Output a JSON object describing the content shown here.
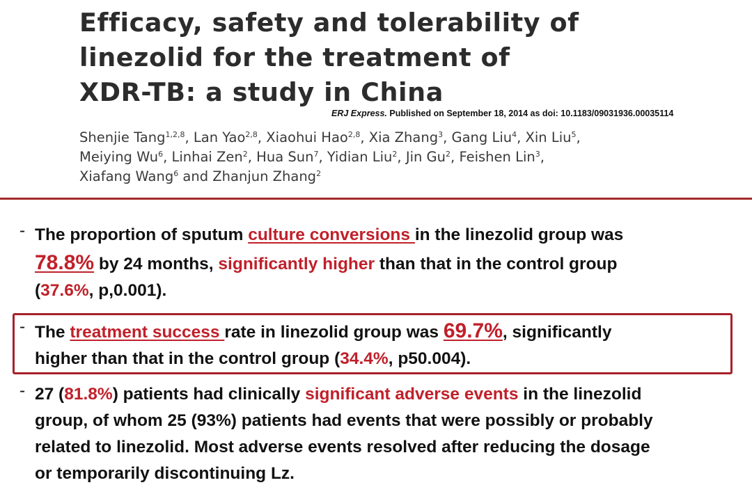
{
  "paper": {
    "title_lines": [
      "Efficacy, safety and tolerability of",
      "linezolid for the treatment of",
      "XDR-TB: a study in China"
    ],
    "journal": "ERJ Express.",
    "published_text": " Published on September 18, 2014 as doi: 10.1183/09031936.00035114",
    "authors": {
      "line1": [
        {
          "name": "Shenjie Tang",
          "sup": "1,2,8",
          "sep": ", "
        },
        {
          "name": "Lan Yao",
          "sup": "2,8",
          "sep": ", "
        },
        {
          "name": "Xiaohui Hao",
          "sup": "2,8",
          "sep": ", "
        },
        {
          "name": "Xia Zhang",
          "sup": "3",
          "sep": ", "
        },
        {
          "name": "Gang Liu",
          "sup": "4",
          "sep": ", "
        },
        {
          "name": "Xin Liu",
          "sup": "5",
          "sep": ","
        }
      ],
      "line2": [
        {
          "name": "Meiying Wu",
          "sup": "6",
          "sep": ", "
        },
        {
          "name": "Linhai Zen",
          "sup": "2",
          "sep": ", "
        },
        {
          "name": "Hua Sun",
          "sup": "7",
          "sep": ", "
        },
        {
          "name": "Yidian Liu",
          "sup": "2",
          "sep": ", "
        },
        {
          "name": "Jin Gu",
          "sup": "2",
          "sep": ", "
        },
        {
          "name": "Feishen Lin",
          "sup": "3",
          "sep": ","
        }
      ],
      "line3": [
        {
          "name": "Xiafang Wang",
          "sup": "6",
          "sep": " and "
        },
        {
          "name": "Zhanjun Zhang",
          "sup": "2",
          "sep": ""
        }
      ]
    }
  },
  "bullets": {
    "dash": "-",
    "b1": {
      "p1": "The proportion of sputum ",
      "p2": "culture conversions ",
      "p3": "in the linezolid group was",
      "p4": "78.8%",
      "p5": " by 24 months, ",
      "p6": "significantly higher",
      "p7": " than that in the control group",
      "p8": "(",
      "p9": "37.6%",
      "p10": ", p,0.001)."
    },
    "b2": {
      "p1": "The ",
      "p2": "treatment success ",
      "p3": "rate in linezolid group was ",
      "p4": "69.7%",
      "p5": ", significantly",
      "p6": "higher than that in the control group (",
      "p7": "34.4%",
      "p8": ", p50.004)."
    },
    "b3": {
      "p1": "27 (",
      "p2": "81.8%",
      "p3": ") patients had clinically ",
      "p4": "significant adverse events",
      "p5": " in the linezolid",
      "p6": "group, of whom 25 (93%) patients had events that were possibly or probably",
      "p7": "related to linezolid. Most adverse events resolved after reducing the dosage",
      "p8": "or temporarily discontinuing Lz."
    }
  },
  "colors": {
    "accent_red": "#c0202a",
    "divider": "#a52a2a",
    "highlight_box": "#a8202a"
  }
}
